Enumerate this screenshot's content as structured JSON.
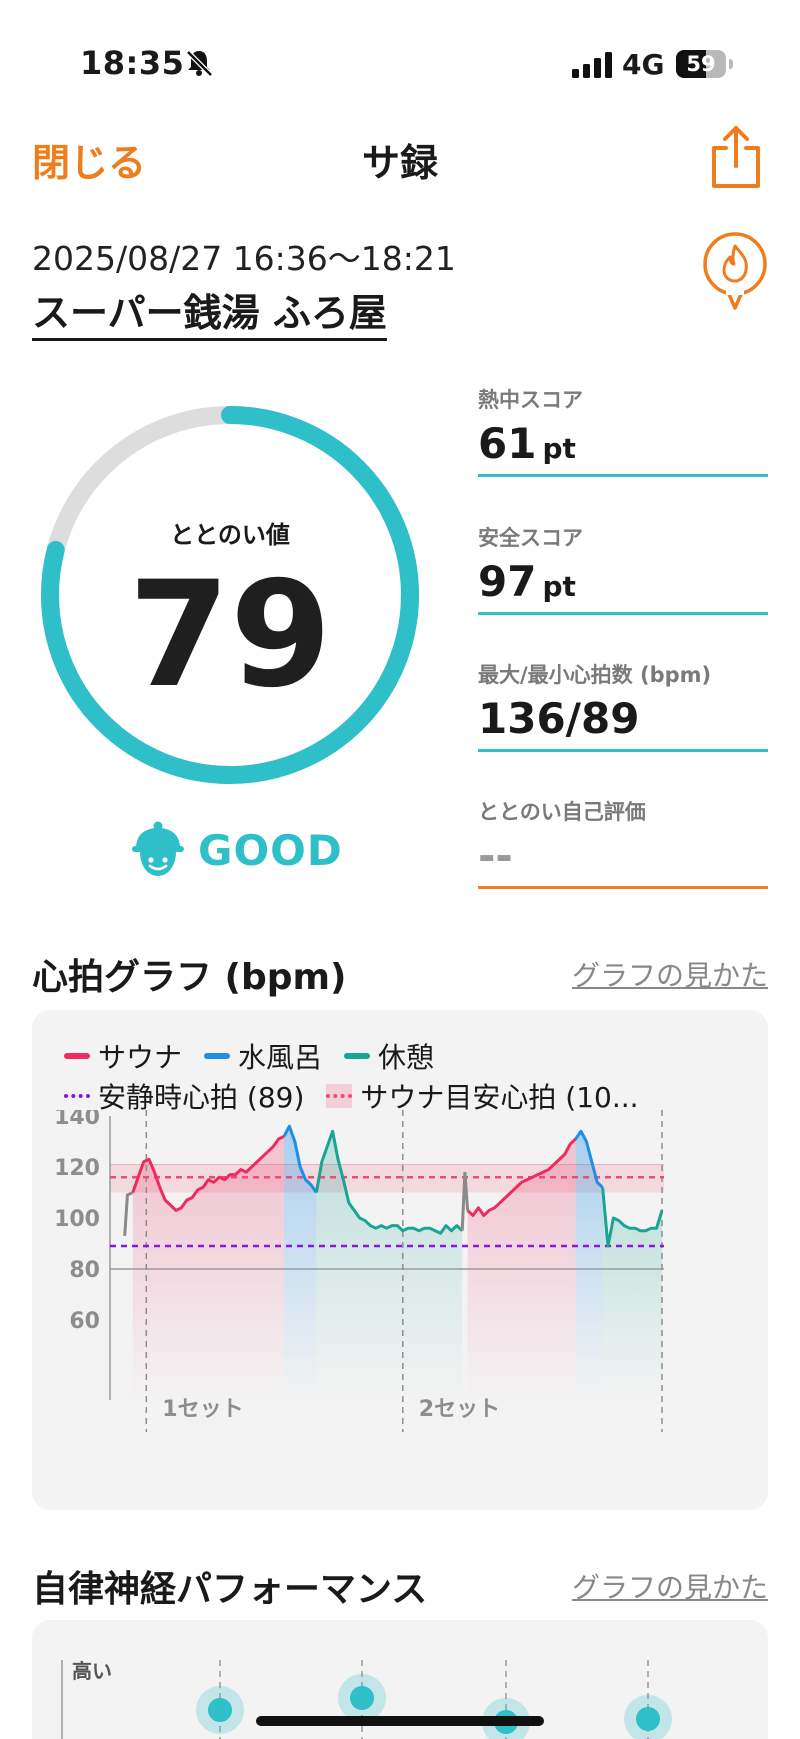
{
  "status_bar": {
    "time": "18:35",
    "network": "4G",
    "battery_level": "59",
    "battery_fraction": 0.59,
    "icons": [
      "bell-slash-icon",
      "signal-icon"
    ]
  },
  "nav": {
    "close_label": "閉じる",
    "title": "サ録",
    "share_icon": "share-icon"
  },
  "session": {
    "datetime": "2025/08/27 16:36〜18:21",
    "facility": "スーパー銭湯 ふろ屋",
    "badge_icon": "flame-badge-icon"
  },
  "score": {
    "label": "ととのい値",
    "value": "79",
    "fraction": 0.79,
    "mood": "GOOD",
    "mood_icon": "smiling-face-icon"
  },
  "metrics": [
    {
      "label": "熱中スコア",
      "value": "61",
      "unit": "pt"
    },
    {
      "label": "安全スコア",
      "value": "97",
      "unit": "pt"
    },
    {
      "label": "最大/最小心拍数 (bpm)",
      "value": "136/89",
      "unit": ""
    },
    {
      "label": "ととのい自己評価",
      "value": "--",
      "unit": ""
    }
  ],
  "heart_section": {
    "title": "心拍グラフ (bpm)",
    "link": "グラフの見かた"
  },
  "ans_section": {
    "title": "自律神経パフォーマンス",
    "link": "グラフの見かた",
    "y_label": "高い",
    "levels": [
      0.5,
      0.7,
      0.3,
      0.35
    ]
  },
  "colors": {
    "accent": "#ef7d1c",
    "teal": "#2fbfc9",
    "sauna": "#ee2a5f",
    "water": "#1e8ee6",
    "rest": "#19a494",
    "resting_hr": "#8a16d8",
    "target_band": "#ec4a7a"
  },
  "chart_data": {
    "type": "line",
    "title": "",
    "xlabel": "",
    "ylabel": "",
    "ylim": [
      60,
      140
    ],
    "y_ticks": [
      140,
      120,
      100,
      80,
      60
    ],
    "legend": [
      {
        "label": "サウナ",
        "kind": "line",
        "color": "#ee2a5f"
      },
      {
        "label": "水風呂",
        "kind": "line",
        "color": "#1e8ee6"
      },
      {
        "label": "休憩",
        "kind": "line",
        "color": "#19a494"
      },
      {
        "label": "安静時心拍 (89)",
        "kind": "dotted",
        "color": "#8a16d8"
      },
      {
        "label": "サウナ目安心拍 (10...",
        "kind": "band",
        "color": "#ec4a7a"
      }
    ],
    "resting_hr": 89,
    "target_band": [
      110,
      121
    ],
    "target_line": 116,
    "set_labels": [
      "1セット",
      "2セット"
    ],
    "x_unit": "sample",
    "x_range": [
      0,
      100
    ],
    "set_boundaries": [
      4.5,
      52,
      100
    ],
    "series": [
      {
        "name": "サウナ",
        "phase": "sauna",
        "points": [
          [
            2,
            110
          ],
          [
            4,
            122
          ],
          [
            5,
            123
          ],
          [
            6,
            118
          ],
          [
            7,
            112
          ],
          [
            8,
            107
          ],
          [
            9,
            105
          ],
          [
            10,
            103
          ],
          [
            11,
            104
          ],
          [
            12,
            107
          ],
          [
            13,
            108
          ],
          [
            14,
            111
          ],
          [
            15,
            112
          ],
          [
            16,
            115
          ],
          [
            17,
            114
          ],
          [
            18,
            116
          ],
          [
            19,
            115
          ],
          [
            20,
            117
          ],
          [
            21,
            117
          ],
          [
            22,
            119
          ],
          [
            23,
            118
          ],
          [
            24,
            120
          ],
          [
            25,
            122
          ],
          [
            26,
            124
          ],
          [
            27,
            126
          ],
          [
            28,
            128
          ],
          [
            29,
            131
          ],
          [
            30,
            132
          ]
        ]
      },
      {
        "name": "水風呂",
        "phase": "water",
        "points": [
          [
            30,
            132
          ],
          [
            31,
            136
          ],
          [
            32,
            130
          ],
          [
            33,
            120
          ],
          [
            34,
            115
          ],
          [
            35,
            113
          ],
          [
            36,
            110
          ]
        ]
      },
      {
        "name": "休憩",
        "phase": "rest",
        "points": [
          [
            36,
            110
          ],
          [
            37,
            122
          ],
          [
            38,
            128
          ],
          [
            39,
            134
          ],
          [
            40,
            123
          ],
          [
            41,
            115
          ],
          [
            42,
            106
          ],
          [
            43,
            103
          ],
          [
            44,
            100
          ],
          [
            45,
            99
          ],
          [
            46,
            97
          ],
          [
            47,
            96
          ],
          [
            48,
            97
          ],
          [
            49,
            96
          ],
          [
            50,
            97
          ],
          [
            51,
            97
          ],
          [
            52,
            95
          ],
          [
            53,
            96
          ],
          [
            54,
            96
          ],
          [
            55,
            95
          ],
          [
            56,
            96
          ],
          [
            57,
            96
          ],
          [
            58,
            95
          ],
          [
            59,
            94
          ],
          [
            60,
            97
          ],
          [
            61,
            95
          ],
          [
            62,
            97
          ],
          [
            63,
            95
          ]
        ]
      },
      {
        "name": "サウナ",
        "phase": "sauna",
        "points": [
          [
            64,
            103
          ],
          [
            65,
            101
          ],
          [
            66,
            104
          ],
          [
            67,
            101
          ],
          [
            68,
            103
          ],
          [
            69,
            104
          ],
          [
            70,
            106
          ],
          [
            71,
            108
          ],
          [
            72,
            110
          ],
          [
            73,
            112
          ],
          [
            74,
            114
          ],
          [
            75,
            115
          ],
          [
            76,
            116
          ],
          [
            77,
            117
          ],
          [
            78,
            118
          ],
          [
            79,
            119
          ],
          [
            80,
            121
          ],
          [
            81,
            123
          ],
          [
            82,
            125
          ],
          [
            83,
            129
          ],
          [
            84,
            131
          ]
        ]
      },
      {
        "name": "水風呂",
        "phase": "water",
        "points": [
          [
            84,
            131
          ],
          [
            85,
            134
          ],
          [
            86,
            130
          ],
          [
            87,
            122
          ],
          [
            88,
            114
          ],
          [
            89,
            112
          ]
        ]
      },
      {
        "name": "休憩",
        "phase": "rest",
        "points": [
          [
            89,
            112
          ],
          [
            90,
            89
          ],
          [
            91,
            100
          ],
          [
            92,
            99
          ],
          [
            93,
            97
          ],
          [
            94,
            96
          ],
          [
            95,
            96
          ],
          [
            96,
            95
          ],
          [
            97,
            95
          ],
          [
            98,
            96
          ],
          [
            99,
            96
          ],
          [
            100,
            103
          ]
        ]
      }
    ]
  }
}
